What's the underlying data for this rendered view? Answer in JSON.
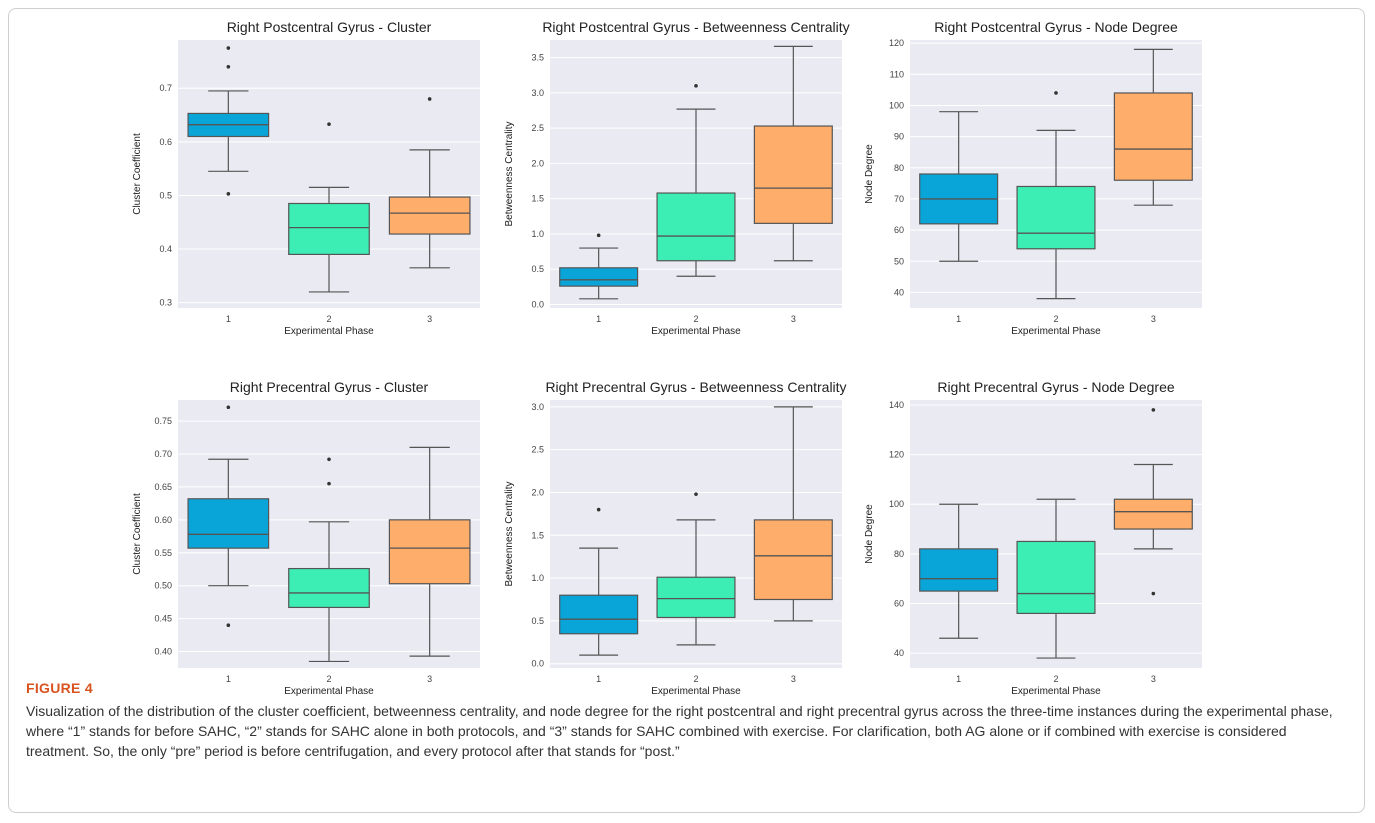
{
  "figure": {
    "label": "FIGURE 4",
    "caption": "Visualization of the distribution of the cluster coefficient, betweenness centrality, and node degree for the right postcentral and right precentral gyrus across the three-time instances during the experimental phase, where “1” stands for before SAHC, “2” stands for SAHC alone in both protocols, and “3” stands for SAHC combined with exercise. For clarification, both AG alone or if combined with exercise is considered treatment. So, the only “pre” period is before centrifugation, and every protocol after that stands for “post.”"
  },
  "colors": {
    "plot_background": "#eaeaf2",
    "grid": "#ffffff",
    "phase1": "#0aa5d8",
    "phase2": "#3deeb4",
    "phase3": "#ffad6b",
    "whisker": "#555555"
  },
  "chart_data": [
    {
      "type": "box",
      "title": "Right Postcentral Gyrus - Cluster",
      "xlabel": "Experimental Phase",
      "ylabel": "Cluster Coefficient",
      "categories": [
        "1",
        "2",
        "3"
      ],
      "ylim": [
        0.29,
        0.79
      ],
      "yticks": [
        0.3,
        0.4,
        0.5,
        0.6,
        0.7
      ],
      "ytick_labels": [
        "0.3",
        "0.4",
        "0.5",
        "0.6",
        "0.7"
      ],
      "boxes": [
        {
          "min": 0.545,
          "q1": 0.61,
          "median": 0.632,
          "q3": 0.653,
          "max": 0.695,
          "outliers": [
            0.775,
            0.74,
            0.503
          ]
        },
        {
          "min": 0.32,
          "q1": 0.39,
          "median": 0.44,
          "q3": 0.485,
          "max": 0.515,
          "outliers": [
            0.633
          ]
        },
        {
          "min": 0.365,
          "q1": 0.428,
          "median": 0.467,
          "q3": 0.497,
          "max": 0.585,
          "outliers": [
            0.68
          ]
        }
      ]
    },
    {
      "type": "box",
      "title": "Right Postcentral Gyrus - Betweenness Centrality",
      "xlabel": "Experimental Phase",
      "ylabel": "Betweenness Centrality",
      "categories": [
        "1",
        "2",
        "3"
      ],
      "ylim": [
        -0.05,
        3.75
      ],
      "yticks": [
        0,
        0.5,
        1,
        1.5,
        2,
        2.5,
        3,
        3.5
      ],
      "ytick_labels": [
        "0.0",
        "0.5",
        "1.0",
        "1.5",
        "2.0",
        "2.5",
        "3.0",
        "3.5"
      ],
      "boxes": [
        {
          "min": 0.08,
          "q1": 0.26,
          "median": 0.35,
          "q3": 0.52,
          "max": 0.8,
          "outliers": [
            0.98
          ]
        },
        {
          "min": 0.4,
          "q1": 0.62,
          "median": 0.97,
          "q3": 1.58,
          "max": 2.77,
          "outliers": [
            3.1
          ]
        },
        {
          "min": 0.62,
          "q1": 1.15,
          "median": 1.65,
          "q3": 2.53,
          "max": 3.66,
          "outliers": []
        }
      ]
    },
    {
      "type": "box",
      "title": "Right Postcentral Gyrus - Node Degree",
      "xlabel": "Experimental Phase",
      "ylabel": "Node Degree",
      "categories": [
        "1",
        "2",
        "3"
      ],
      "ylim": [
        35,
        121
      ],
      "yticks": [
        40,
        50,
        60,
        70,
        80,
        90,
        100,
        110,
        120
      ],
      "ytick_labels": [
        "40",
        "50",
        "60",
        "70",
        "80",
        "90",
        "100",
        "110",
        "120"
      ],
      "boxes": [
        {
          "min": 50,
          "q1": 62,
          "median": 70,
          "q3": 78,
          "max": 98,
          "outliers": []
        },
        {
          "min": 38,
          "q1": 54,
          "median": 59,
          "q3": 74,
          "max": 92,
          "outliers": [
            104
          ]
        },
        {
          "min": 68,
          "q1": 76,
          "median": 86,
          "q3": 104,
          "max": 118,
          "outliers": []
        }
      ]
    },
    {
      "type": "box",
      "title": "Right Precentral Gyrus - Cluster",
      "xlabel": "Experimental Phase",
      "ylabel": "Cluster Coefficient",
      "categories": [
        "1",
        "2",
        "3"
      ],
      "ylim": [
        0.375,
        0.782
      ],
      "yticks": [
        0.4,
        0.45,
        0.5,
        0.55,
        0.6,
        0.65,
        0.7,
        0.75
      ],
      "ytick_labels": [
        "0.40",
        "0.45",
        "0.50",
        "0.55",
        "0.60",
        "0.65",
        "0.70",
        "0.75"
      ],
      "boxes": [
        {
          "min": 0.5,
          "q1": 0.557,
          "median": 0.578,
          "q3": 0.632,
          "max": 0.692,
          "outliers": [
            0.771,
            0.44
          ]
        },
        {
          "min": 0.385,
          "q1": 0.467,
          "median": 0.489,
          "q3": 0.526,
          "max": 0.597,
          "outliers": [
            0.692,
            0.655
          ]
        },
        {
          "min": 0.393,
          "q1": 0.503,
          "median": 0.557,
          "q3": 0.6,
          "max": 0.71,
          "outliers": []
        }
      ]
    },
    {
      "type": "box",
      "title": "Right Precentral Gyrus - Betweenness Centrality",
      "xlabel": "Experimental Phase",
      "ylabel": "Betweenness Centrality",
      "categories": [
        "1",
        "2",
        "3"
      ],
      "ylim": [
        -0.05,
        3.08
      ],
      "yticks": [
        0,
        0.5,
        1,
        1.5,
        2,
        2.5,
        3
      ],
      "ytick_labels": [
        "0.0",
        "0.5",
        "1.0",
        "1.5",
        "2.0",
        "2.5",
        "3.0"
      ],
      "boxes": [
        {
          "min": 0.1,
          "q1": 0.35,
          "median": 0.52,
          "q3": 0.8,
          "max": 1.35,
          "outliers": [
            1.8
          ]
        },
        {
          "min": 0.22,
          "q1": 0.54,
          "median": 0.76,
          "q3": 1.01,
          "max": 1.68,
          "outliers": [
            1.98
          ]
        },
        {
          "min": 0.5,
          "q1": 0.75,
          "median": 1.26,
          "q3": 1.68,
          "max": 3.0,
          "outliers": []
        }
      ]
    },
    {
      "type": "box",
      "title": "Right Precentral Gyrus - Node Degree",
      "xlabel": "Experimental Phase",
      "ylabel": "Node Degree",
      "categories": [
        "1",
        "2",
        "3"
      ],
      "ylim": [
        34,
        142
      ],
      "yticks": [
        40,
        60,
        80,
        100,
        120,
        140
      ],
      "ytick_labels": [
        "40",
        "60",
        "80",
        "100",
        "120",
        "140"
      ],
      "boxes": [
        {
          "min": 46,
          "q1": 65,
          "median": 70,
          "q3": 82,
          "max": 100,
          "outliers": []
        },
        {
          "min": 38,
          "q1": 56,
          "median": 64,
          "q3": 85,
          "max": 102,
          "outliers": []
        },
        {
          "min": 82,
          "q1": 90,
          "median": 97,
          "q3": 102,
          "max": 116,
          "outliers": [
            138,
            64
          ]
        }
      ]
    }
  ]
}
